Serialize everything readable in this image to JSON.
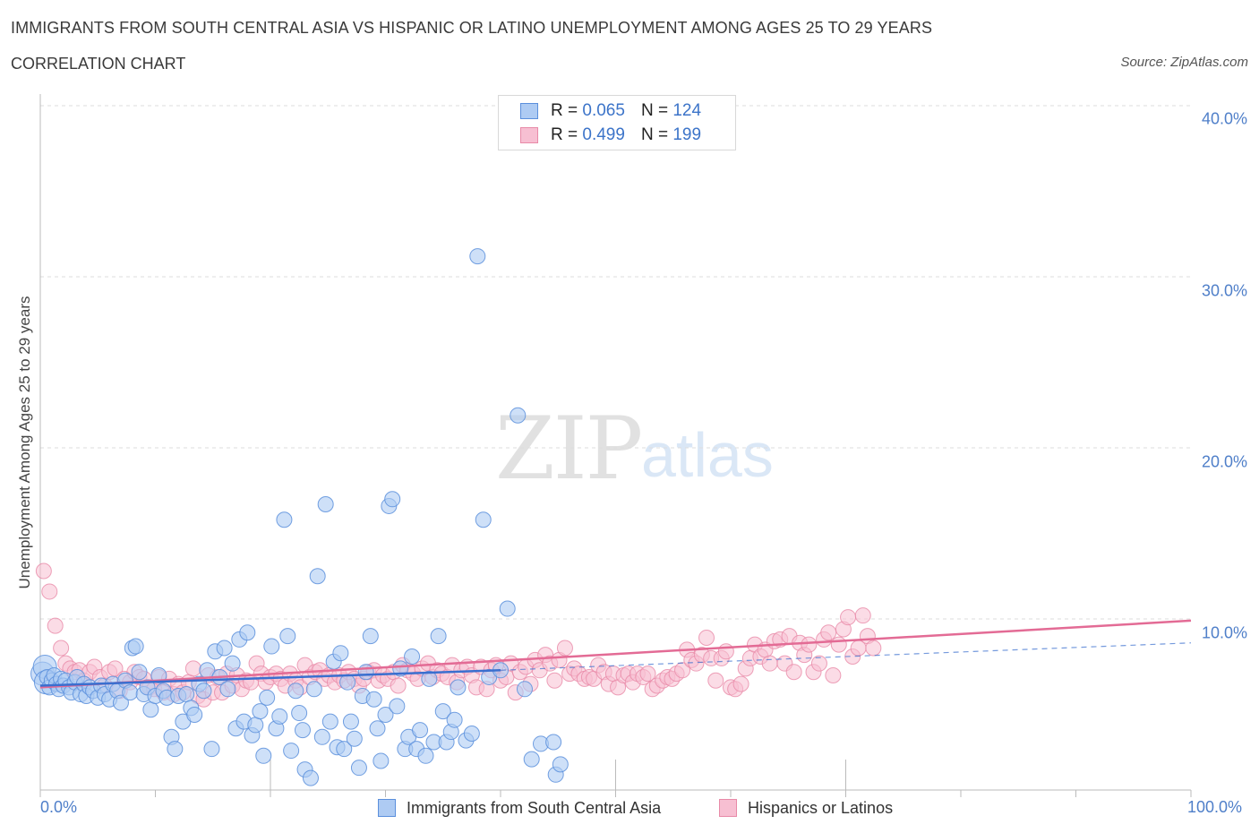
{
  "header": {
    "title": "IMMIGRANTS FROM SOUTH CENTRAL ASIA VS HISPANIC OR LATINO UNEMPLOYMENT AMONG AGES 25 TO 29 YEARS",
    "subtitle": "CORRELATION CHART",
    "source": "Source: ZipAtlas.com"
  },
  "watermark": {
    "main": "ZIP",
    "suffix": "atlas"
  },
  "legend": {
    "r_label": "R =",
    "n_label": "N =",
    "series_a": {
      "r": "0.065",
      "n": "124"
    },
    "series_b": {
      "r": "0.499",
      "n": "199"
    }
  },
  "colors": {
    "series_a_fill": "#aecbf3",
    "series_a_stroke": "#5b8fdc",
    "series_a_line": "#3a6fcf",
    "series_b_fill": "#f7bfd2",
    "series_b_stroke": "#e88aa8",
    "series_b_line": "#e36b95",
    "tick_text": "#4f7fc9",
    "grid": "#dddddd"
  },
  "chart_data": {
    "type": "scatter",
    "title": "IMMIGRANTS FROM SOUTH CENTRAL ASIA VS HISPANIC OR LATINO UNEMPLOYMENT AMONG AGES 25 TO 29 YEARS",
    "subtitle": "CORRELATION CHART",
    "xlabel": "",
    "ylabel": "Unemployment Among Ages 25 to 29 years",
    "xlim": [
      0,
      100
    ],
    "ylim": [
      0,
      40
    ],
    "x_tick_labels": [
      "0.0%",
      "100.0%"
    ],
    "y_ticks": [
      10,
      20,
      30,
      40
    ],
    "y_tick_labels": [
      "10.0%",
      "20.0%",
      "30.0%",
      "40.0%"
    ],
    "grid": "horizontal dashed",
    "legend_position": "top-center and bottom",
    "series": [
      {
        "name": "Immigrants from South Central Asia",
        "R": 0.065,
        "N": 124,
        "trend": {
          "x": [
            0,
            40
          ],
          "y": [
            6.1,
            7.0
          ]
        },
        "trend_dashed_extension": {
          "x": [
            40,
            100
          ],
          "y": [
            7.0,
            8.6
          ]
        },
        "points": [
          [
            0.2,
            6.8
          ],
          [
            0.4,
            7.2
          ],
          [
            0.5,
            6.3
          ],
          [
            0.6,
            6.6
          ],
          [
            0.8,
            6.0
          ],
          [
            1,
            6.4
          ],
          [
            1.2,
            6.7
          ],
          [
            1.4,
            6.2
          ],
          [
            1.6,
            5.9
          ],
          [
            1.8,
            6.5
          ],
          [
            2,
            6.1
          ],
          [
            2.2,
            6.4
          ],
          [
            2.5,
            6.0
          ],
          [
            2.7,
            5.7
          ],
          [
            3,
            6.3
          ],
          [
            3.2,
            6.6
          ],
          [
            3.5,
            5.6
          ],
          [
            3.8,
            6.2
          ],
          [
            4,
            5.5
          ],
          [
            4.3,
            6.0
          ],
          [
            4.6,
            5.8
          ],
          [
            5,
            5.4
          ],
          [
            5.3,
            6.1
          ],
          [
            5.6,
            5.6
          ],
          [
            6,
            5.3
          ],
          [
            6.3,
            6.2
          ],
          [
            6.7,
            5.8
          ],
          [
            7,
            5.1
          ],
          [
            7.4,
            6.4
          ],
          [
            7.8,
            5.7
          ],
          [
            8,
            8.3
          ],
          [
            8.3,
            8.4
          ],
          [
            8.6,
            6.9
          ],
          [
            9,
            5.6
          ],
          [
            9.3,
            6.0
          ],
          [
            9.6,
            4.7
          ],
          [
            10,
            5.5
          ],
          [
            10.3,
            6.7
          ],
          [
            10.7,
            5.8
          ],
          [
            11,
            5.4
          ],
          [
            11.4,
            3.1
          ],
          [
            11.7,
            2.4
          ],
          [
            12,
            5.5
          ],
          [
            12.4,
            4.0
          ],
          [
            12.7,
            5.6
          ],
          [
            13.1,
            4.8
          ],
          [
            13.4,
            4.4
          ],
          [
            13.8,
            6.2
          ],
          [
            14.2,
            5.8
          ],
          [
            14.5,
            7.0
          ],
          [
            14.9,
            2.4
          ],
          [
            15.2,
            8.1
          ],
          [
            15.6,
            6.6
          ],
          [
            16,
            8.3
          ],
          [
            16.3,
            5.9
          ],
          [
            16.7,
            7.4
          ],
          [
            17,
            3.6
          ],
          [
            17.3,
            8.8
          ],
          [
            17.7,
            4.0
          ],
          [
            18,
            9.2
          ],
          [
            18.4,
            3.2
          ],
          [
            18.7,
            3.8
          ],
          [
            19.1,
            4.6
          ],
          [
            19.4,
            2.0
          ],
          [
            19.7,
            5.4
          ],
          [
            20.1,
            8.4
          ],
          [
            20.5,
            3.6
          ],
          [
            20.8,
            4.3
          ],
          [
            21.2,
            15.8
          ],
          [
            21.5,
            9.0
          ],
          [
            21.8,
            2.3
          ],
          [
            22.2,
            5.8
          ],
          [
            22.5,
            4.5
          ],
          [
            22.8,
            3.5
          ],
          [
            23,
            1.2
          ],
          [
            23.5,
            0.7
          ],
          [
            23.8,
            5.9
          ],
          [
            24.1,
            12.5
          ],
          [
            24.5,
            3.1
          ],
          [
            24.8,
            16.7
          ],
          [
            25.2,
            4.0
          ],
          [
            25.5,
            7.5
          ],
          [
            25.8,
            2.5
          ],
          [
            26.1,
            8.0
          ],
          [
            26.4,
            2.4
          ],
          [
            26.7,
            6.3
          ],
          [
            27,
            4.0
          ],
          [
            27.3,
            3.0
          ],
          [
            27.7,
            1.3
          ],
          [
            28,
            5.5
          ],
          [
            28.3,
            6.9
          ],
          [
            28.7,
            9.0
          ],
          [
            29,
            5.3
          ],
          [
            29.3,
            3.6
          ],
          [
            29.6,
            1.7
          ],
          [
            30,
            4.4
          ],
          [
            30.3,
            16.6
          ],
          [
            30.6,
            17.0
          ],
          [
            31,
            4.9
          ],
          [
            31.3,
            7.1
          ],
          [
            31.7,
            2.4
          ],
          [
            32,
            3.1
          ],
          [
            32.3,
            7.8
          ],
          [
            32.7,
            2.4
          ],
          [
            33,
            3.5
          ],
          [
            33.5,
            2.0
          ],
          [
            33.8,
            6.5
          ],
          [
            34.2,
            2.8
          ],
          [
            34.6,
            9.0
          ],
          [
            35,
            4.6
          ],
          [
            35.3,
            2.8
          ],
          [
            35.7,
            3.4
          ],
          [
            36,
            4.1
          ],
          [
            36.3,
            6.0
          ],
          [
            37,
            2.9
          ],
          [
            37.5,
            3.3
          ],
          [
            38,
            31.2
          ],
          [
            38.5,
            15.8
          ],
          [
            39,
            6.6
          ],
          [
            40,
            7.0
          ],
          [
            40.6,
            10.6
          ],
          [
            41.5,
            21.9
          ],
          [
            42.1,
            5.9
          ],
          [
            42.7,
            1.8
          ],
          [
            43.5,
            2.7
          ],
          [
            44.6,
            2.8
          ],
          [
            44.8,
            0.9
          ],
          [
            45.2,
            1.5
          ]
        ]
      },
      {
        "name": "Hispanics or Latinos",
        "R": 0.499,
        "N": 199,
        "trend": {
          "x": [
            0,
            100
          ],
          "y": [
            6.0,
            9.9
          ]
        },
        "points": [
          [
            0.3,
            12.8
          ],
          [
            0.8,
            11.6
          ],
          [
            1.3,
            9.6
          ],
          [
            1.8,
            8.3
          ],
          [
            2.2,
            7.4
          ],
          [
            2.6,
            7.1
          ],
          [
            3,
            6.9
          ],
          [
            3.4,
            7.0
          ],
          [
            3.8,
            6.4
          ],
          [
            4.3,
            6.9
          ],
          [
            4.7,
            7.2
          ],
          [
            5.2,
            6.6
          ],
          [
            5.6,
            6.1
          ],
          [
            6,
            6.9
          ],
          [
            6.5,
            7.1
          ],
          [
            6.9,
            5.8
          ],
          [
            7.3,
            6.5
          ],
          [
            7.8,
            6.3
          ],
          [
            8.2,
            6.9
          ],
          [
            8.6,
            6.6
          ],
          [
            9,
            6.5
          ],
          [
            9.5,
            6.0
          ],
          [
            9.9,
            5.9
          ],
          [
            10.3,
            6.6
          ],
          [
            10.7,
            5.7
          ],
          [
            11.2,
            6.5
          ],
          [
            11.6,
            5.6
          ],
          [
            12,
            6.2
          ],
          [
            12.4,
            5.7
          ],
          [
            12.9,
            6.3
          ],
          [
            13.3,
            7.1
          ],
          [
            13.7,
            5.5
          ],
          [
            14.2,
            5.3
          ],
          [
            14.6,
            6.7
          ],
          [
            15,
            5.7
          ],
          [
            15.4,
            6.6
          ],
          [
            15.8,
            5.7
          ],
          [
            16.2,
            6.8
          ],
          [
            16.7,
            6.1
          ],
          [
            17.1,
            6.7
          ],
          [
            17.5,
            5.9
          ],
          [
            17.9,
            6.4
          ],
          [
            18.3,
            6.3
          ],
          [
            18.8,
            7.4
          ],
          [
            19.2,
            6.8
          ],
          [
            19.6,
            6.3
          ],
          [
            20,
            6.6
          ],
          [
            20.5,
            6.8
          ],
          [
            20.9,
            6.5
          ],
          [
            21.3,
            6.1
          ],
          [
            21.7,
            6.8
          ],
          [
            22.2,
            6.4
          ],
          [
            22.6,
            6.0
          ],
          [
            23,
            7.3
          ],
          [
            23.4,
            6.6
          ],
          [
            23.9,
            6.9
          ],
          [
            24.3,
            7.0
          ],
          [
            24.7,
            6.5
          ],
          [
            25.1,
            6.7
          ],
          [
            25.6,
            6.3
          ],
          [
            26,
            6.7
          ],
          [
            26.4,
            6.4
          ],
          [
            26.8,
            6.9
          ],
          [
            27.3,
            6.5
          ],
          [
            27.7,
            6.1
          ],
          [
            28.1,
            6.5
          ],
          [
            28.5,
            6.9
          ],
          [
            29,
            7.0
          ],
          [
            29.4,
            6.4
          ],
          [
            29.8,
            6.7
          ],
          [
            30.2,
            6.5
          ],
          [
            30.7,
            6.9
          ],
          [
            31.1,
            6.1
          ],
          [
            31.5,
            7.3
          ],
          [
            31.9,
            7.0
          ],
          [
            32.4,
            6.8
          ],
          [
            32.8,
            6.5
          ],
          [
            33.2,
            7.1
          ],
          [
            33.7,
            7.4
          ],
          [
            34.1,
            6.6
          ],
          [
            34.5,
            7.0
          ],
          [
            34.9,
            6.8
          ],
          [
            35.4,
            6.6
          ],
          [
            35.8,
            7.3
          ],
          [
            36.2,
            6.3
          ],
          [
            36.6,
            7.0
          ],
          [
            37.1,
            7.2
          ],
          [
            37.5,
            6.7
          ],
          [
            37.9,
            6.0
          ],
          [
            38.3,
            7.2
          ],
          [
            38.8,
            5.9
          ],
          [
            39.2,
            7.0
          ],
          [
            39.6,
            7.3
          ],
          [
            40,
            6.4
          ],
          [
            40.5,
            6.6
          ],
          [
            40.9,
            7.4
          ],
          [
            41.3,
            5.7
          ],
          [
            41.7,
            6.9
          ],
          [
            42.2,
            7.2
          ],
          [
            42.6,
            6.2
          ],
          [
            43,
            7.6
          ],
          [
            43.4,
            7.0
          ],
          [
            43.9,
            7.9
          ],
          [
            44.3,
            7.4
          ],
          [
            44.7,
            6.4
          ],
          [
            45.1,
            7.6
          ],
          [
            45.6,
            8.3
          ],
          [
            46,
            6.8
          ],
          [
            46.4,
            7.1
          ],
          [
            46.8,
            6.8
          ],
          [
            47.3,
            6.5
          ],
          [
            47.7,
            6.6
          ],
          [
            48.1,
            6.5
          ],
          [
            48.5,
            7.3
          ],
          [
            49,
            6.9
          ],
          [
            49.4,
            6.2
          ],
          [
            49.8,
            6.8
          ],
          [
            50.2,
            6.0
          ],
          [
            50.7,
            6.7
          ],
          [
            51.1,
            6.8
          ],
          [
            51.5,
            6.3
          ],
          [
            51.9,
            6.8
          ],
          [
            52.4,
            6.6
          ],
          [
            52.8,
            6.8
          ],
          [
            53.2,
            5.9
          ],
          [
            53.6,
            6.1
          ],
          [
            54.1,
            6.4
          ],
          [
            54.5,
            6.6
          ],
          [
            54.9,
            6.5
          ],
          [
            55.3,
            6.8
          ],
          [
            55.8,
            7.0
          ],
          [
            56.2,
            8.2
          ],
          [
            56.6,
            7.6
          ],
          [
            57,
            7.4
          ],
          [
            57.5,
            7.9
          ],
          [
            57.9,
            8.9
          ],
          [
            58.3,
            7.7
          ],
          [
            58.7,
            6.4
          ],
          [
            59.2,
            7.7
          ],
          [
            59.6,
            8.1
          ],
          [
            60,
            6.0
          ],
          [
            60.4,
            5.9
          ],
          [
            60.9,
            6.2
          ],
          [
            61.3,
            7.1
          ],
          [
            61.7,
            7.7
          ],
          [
            62.1,
            8.5
          ],
          [
            62.6,
            7.8
          ],
          [
            63,
            8.2
          ],
          [
            63.4,
            7.4
          ],
          [
            63.8,
            8.7
          ],
          [
            64.3,
            8.8
          ],
          [
            64.7,
            7.4
          ],
          [
            65.1,
            9.0
          ],
          [
            65.5,
            6.9
          ],
          [
            66,
            8.6
          ],
          [
            66.4,
            7.9
          ],
          [
            66.8,
            8.5
          ],
          [
            67.2,
            6.9
          ],
          [
            67.7,
            7.4
          ],
          [
            68.1,
            8.8
          ],
          [
            68.5,
            9.2
          ],
          [
            68.9,
            6.7
          ],
          [
            69.4,
            8.5
          ],
          [
            69.8,
            9.4
          ],
          [
            70.2,
            10.1
          ],
          [
            70.6,
            7.8
          ],
          [
            71.1,
            8.3
          ],
          [
            71.5,
            10.2
          ],
          [
            71.9,
            9.0
          ],
          [
            72.4,
            8.3
          ]
        ]
      }
    ]
  },
  "bottom_legend": [
    "Immigrants from South Central Asia",
    "Hispanics or Latinos"
  ]
}
